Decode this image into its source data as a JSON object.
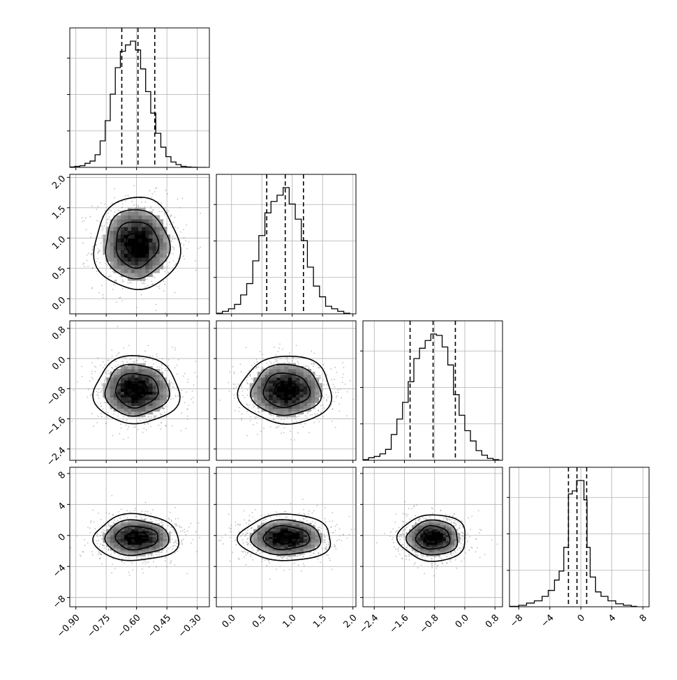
{
  "chart_data": {
    "type": "corner",
    "variables": [
      {
        "range": [
          -0.93,
          -0.24
        ],
        "ticks": [
          -0.9,
          -0.75,
          -0.6,
          -0.45,
          -0.3
        ],
        "tick_labels": [
          "−0.90",
          "−0.75",
          "−0.60",
          "−0.45",
          "−0.30"
        ],
        "quantiles": [
          -0.673,
          -0.593,
          -0.51
        ],
        "hist": {
          "edges": [
            -0.93,
            -0.905,
            -0.88,
            -0.855,
            -0.83,
            -0.805,
            -0.78,
            -0.755,
            -0.73,
            -0.705,
            -0.68,
            -0.655,
            -0.63,
            -0.605,
            -0.58,
            -0.555,
            -0.53,
            -0.505,
            -0.48,
            -0.455,
            -0.43,
            -0.405,
            -0.38,
            -0.355,
            -0.33,
            -0.305,
            -0.28,
            -0.255
          ],
          "counts": [
            0.3,
            0.8,
            1.3,
            3.2,
            5.0,
            10.0,
            21.0,
            37.0,
            58.0,
            79.0,
            92.0,
            97.0,
            100.0,
            93.0,
            78.0,
            60.0,
            43.0,
            27.0,
            16.0,
            8.5,
            4.3,
            2.2,
            0.8,
            0.3,
            0.1,
            0.0,
            0.0
          ]
        }
      },
      {
        "range": [
          -0.25,
          2.05
        ],
        "ticks": [
          0.0,
          0.5,
          1.0,
          1.5,
          2.0
        ],
        "tick_labels": [
          "0.0",
          "0.5",
          "1.0",
          "1.5",
          "2.0"
        ],
        "quantiles": [
          0.58,
          0.885,
          1.185
        ],
        "hist": {
          "edges": [
            -0.25,
            -0.15,
            -0.05,
            0.05,
            0.15,
            0.25,
            0.35,
            0.45,
            0.55,
            0.65,
            0.75,
            0.85,
            0.95,
            1.05,
            1.15,
            1.25,
            1.35,
            1.45,
            1.55,
            1.65,
            1.75,
            1.85,
            1.95
          ],
          "counts": [
            0.5,
            2,
            4,
            7.5,
            15,
            24,
            42,
            62,
            80,
            89,
            94,
            100,
            87,
            75,
            58,
            37,
            22,
            13.5,
            6,
            4,
            2,
            0.5
          ]
        }
      },
      {
        "range": [
          -2.7,
          1.0
        ],
        "ticks": [
          -2.4,
          -1.6,
          -0.8,
          0.0,
          0.8
        ],
        "tick_labels": [
          "−2.4",
          "−1.6",
          "−0.8",
          "0.0",
          "0.8"
        ],
        "quantiles": [
          -1.45,
          -0.84,
          -0.25
        ],
        "hist": {
          "edges": [
            -2.7,
            -2.55,
            -2.4,
            -2.25,
            -2.1,
            -1.95,
            -1.8,
            -1.65,
            -1.5,
            -1.35,
            -1.2,
            -1.05,
            -0.9,
            -0.75,
            -0.6,
            -0.45,
            -0.3,
            -0.15,
            0.0,
            0.15,
            0.3,
            0.45,
            0.6,
            0.75,
            0.9,
            1.0
          ],
          "counts": [
            0.5,
            2,
            3,
            5,
            8.5,
            20,
            32,
            45,
            61,
            79,
            87,
            93,
            98,
            97,
            88,
            74,
            51,
            35,
            23,
            15,
            7.5,
            4,
            1.5,
            0.5,
            0
          ]
        }
      },
      {
        "range": [
          -9.2,
          8.8
        ],
        "ticks": [
          -8,
          -4,
          0,
          4,
          8
        ],
        "tick_labels": [
          "−8",
          "−4",
          "0",
          "4",
          "8"
        ],
        "quantiles": [
          -1.6,
          -0.5,
          0.75
        ],
        "hist": {
          "edges": [
            -9.2,
            -8.0,
            -7.0,
            -6.0,
            -5.0,
            -4.2,
            -3.4,
            -2.8,
            -2.2,
            -1.6,
            -1.1,
            -0.55,
            0.0,
            0.4,
            0.8,
            1.2,
            1.9,
            2.6,
            3.5,
            4.5,
            5.5,
            6.5,
            7.2
          ],
          "counts": [
            0.3,
            1,
            2.5,
            4,
            7,
            11,
            18,
            24,
            40,
            76,
            78,
            85,
            85,
            72,
            40,
            20,
            10,
            7,
            4,
            2,
            1,
            0.3
          ]
        }
      }
    ],
    "levels": [
      0.118,
      0.393,
      0.675,
      0.865
    ],
    "pairs": [
      {
        "x_var": 0,
        "y_var": 1,
        "center": [
          -0.6,
          0.9
        ],
        "sigma": [
          0.105,
          0.38
        ]
      },
      {
        "x_var": 0,
        "y_var": 2,
        "center": [
          -0.6,
          -0.84
        ],
        "sigma": [
          0.105,
          0.45
        ]
      },
      {
        "x_var": 0,
        "y_var": 3,
        "center": [
          -0.6,
          -0.3
        ],
        "sigma": [
          0.105,
          1.5
        ]
      },
      {
        "x_var": 1,
        "y_var": 2,
        "center": [
          0.9,
          -0.84
        ],
        "sigma": [
          0.38,
          0.45
        ]
      },
      {
        "x_var": 1,
        "y_var": 3,
        "center": [
          0.9,
          -0.3
        ],
        "sigma": [
          0.38,
          1.5
        ]
      },
      {
        "x_var": 2,
        "y_var": 3,
        "center": [
          -0.84,
          -0.3
        ],
        "sigma": [
          0.45,
          1.5
        ]
      }
    ],
    "grid": true,
    "colors": {
      "contour": "#000000",
      "scatter": "#8c8c8c",
      "grid": "#b0b0b0",
      "axes": "#000000"
    }
  }
}
